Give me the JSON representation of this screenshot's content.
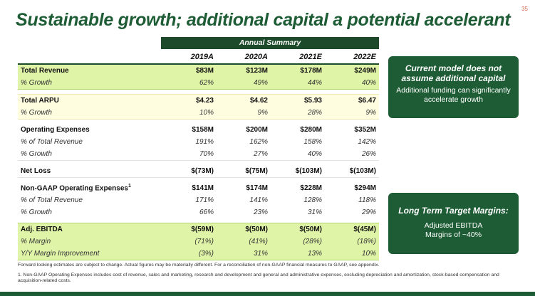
{
  "page_number": "35",
  "title": "Sustainable growth; additional capital a potential accelerant",
  "table": {
    "header": "Annual Summary",
    "years": [
      "2019A",
      "2020A",
      "2021E",
      "2022E"
    ],
    "rows": {
      "total_revenue": {
        "label": "Total Revenue",
        "values": [
          "$83M",
          "$123M",
          "$178M",
          "$249M"
        ]
      },
      "revenue_growth": {
        "label": "% Growth",
        "values": [
          "62%",
          "49%",
          "44%",
          "40%"
        ]
      },
      "total_arpu": {
        "label": "Total ARPU",
        "values": [
          "$4.23",
          "$4.62",
          "$5.93",
          "$6.47"
        ]
      },
      "arpu_growth": {
        "label": "% Growth",
        "values": [
          "10%",
          "9%",
          "28%",
          "9%"
        ]
      },
      "opex": {
        "label": "Operating Expenses",
        "values": [
          "$158M",
          "$200M",
          "$280M",
          "$352M"
        ]
      },
      "opex_pct_rev": {
        "label": "% of Total Revenue",
        "values": [
          "191%",
          "162%",
          "158%",
          "142%"
        ]
      },
      "opex_growth": {
        "label": "% Growth",
        "values": [
          "70%",
          "27%",
          "40%",
          "26%"
        ]
      },
      "net_loss": {
        "label": "Net Loss",
        "values": [
          "$(73M)",
          "$(75M)",
          "$(103M)",
          "$(103M)"
        ]
      },
      "ngaap_opex": {
        "label": "Non-GAAP Operating Expenses",
        "footnote": "1",
        "values": [
          "$141M",
          "$174M",
          "$228M",
          "$294M"
        ]
      },
      "ngaap_pct_rev": {
        "label": "% of Total Revenue",
        "values": [
          "171%",
          "141%",
          "128%",
          "118%"
        ]
      },
      "ngaap_growth": {
        "label": "% Growth",
        "values": [
          "66%",
          "23%",
          "31%",
          "29%"
        ]
      },
      "adj_ebitda": {
        "label": "Adj. EBITDA",
        "values": [
          "$(59M)",
          "$(50M)",
          "$(50M)",
          "$(45M)"
        ]
      },
      "ebitda_margin": {
        "label": "% Margin",
        "values": [
          "(71%)",
          "(41%)",
          "(28%)",
          "(18%)"
        ]
      },
      "margin_improvement": {
        "label": "Y/Y Margin Improvement",
        "values": [
          "(3%)",
          "31%",
          "13%",
          "10%"
        ]
      }
    }
  },
  "callout_current_model": {
    "heading": "Current model does not assume additional capital",
    "body": "Additional funding can significantly accelerate growth"
  },
  "callout_long_term": {
    "heading": "Long Term Target Margins:",
    "body_line1": "Adjusted EBITDA",
    "body_line2": "Margins of ~40%"
  },
  "footnotes": {
    "forward_looking": "Forward looking estimates are subject to change. Actual figures may be materially different. For a reconciliation of non-GAAP financial measures to GAAP, see appendix.",
    "note1": "1. Non-GAAP Operating Expenses includes cost of revenue, sales and marketing, research and development and general and administrative expenses, excluding depreciation and amortization, stock-based compensation and acquisition-related costs."
  },
  "colors": {
    "brand_green": "#1d5c34",
    "header_green": "#1d4a2a",
    "highlight_green": "#e0f4a8",
    "highlight_yellow": "#fffde0"
  }
}
